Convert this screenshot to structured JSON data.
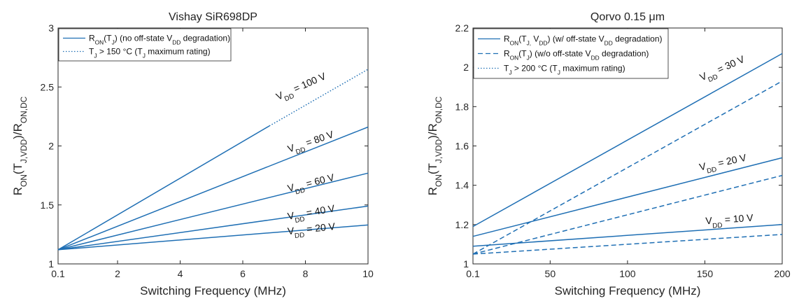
{
  "chart_data": [
    {
      "type": "line",
      "title": "Vishay SiR698DP",
      "xlabel": "Switching Frequency (MHz)",
      "ylabel": "R_ON(T_J,V_DD)/R_ON,DC",
      "xlim": [
        0.1,
        10
      ],
      "ylim": [
        1,
        3
      ],
      "xticks": [
        0.1,
        2,
        4,
        6,
        8,
        10
      ],
      "xtick_labels": [
        "0.1",
        "2",
        "4",
        "6",
        "8",
        "10"
      ],
      "yticks": [
        1,
        1.5,
        2,
        2.5,
        3
      ],
      "ytick_labels": [
        "1",
        "1.5",
        "2",
        "2.5",
        "3"
      ],
      "color": "#1f6fb4",
      "legend": [
        {
          "style": "solid",
          "text": "R_ON(T_J) (no off-state V_DD degradation)"
        },
        {
          "style": "dotted",
          "text": "T_J > 150 °C (T_J maximum rating)"
        }
      ],
      "series": [
        {
          "x": [
            0.1,
            6.85
          ],
          "y": [
            1.12,
            2.17
          ],
          "style": "solid"
        },
        {
          "x": [
            6.85,
            10
          ],
          "y": [
            2.17,
            2.65
          ],
          "style": "dotted"
        },
        {
          "x": [
            0.1,
            10
          ],
          "y": [
            1.12,
            2.16
          ],
          "style": "solid"
        },
        {
          "x": [
            0.1,
            10
          ],
          "y": [
            1.12,
            1.77
          ],
          "style": "solid"
        },
        {
          "x": [
            0.1,
            10
          ],
          "y": [
            1.12,
            1.49
          ],
          "style": "solid"
        },
        {
          "x": [
            0.1,
            10
          ],
          "y": [
            1.12,
            1.33
          ],
          "style": "solid"
        }
      ],
      "annotations": [
        {
          "text": "V_DD = 100 V",
          "at": [
            7.9,
            2.48
          ],
          "rot": -24
        },
        {
          "text": "V_DD = 80 V",
          "at": [
            8.2,
            2.01
          ],
          "rot": -19
        },
        {
          "text": "V_DD = 60 V",
          "at": [
            8.2,
            1.66
          ],
          "rot": -14
        },
        {
          "text": "V_DD = 40 V",
          "at": [
            8.2,
            1.41
          ],
          "rot": -10
        },
        {
          "text": "V_DD = 20 V",
          "at": [
            8.2,
            1.27
          ],
          "rot": -6
        }
      ]
    },
    {
      "type": "line",
      "title": "Qorvo 0.15 μm",
      "xlabel": "Switching Frequency (MHz)",
      "ylabel": "R_ON(T_J,V_DD)/R_ON,DC",
      "xlim": [
        0.1,
        200
      ],
      "ylim": [
        1,
        2.2
      ],
      "xticks": [
        0.1,
        50,
        100,
        150,
        200
      ],
      "xtick_labels": [
        "0.1",
        "50",
        "100",
        "150",
        "200"
      ],
      "yticks": [
        1,
        1.2,
        1.4,
        1.6,
        1.8,
        2,
        2.2
      ],
      "ytick_labels": [
        "1",
        "1.2",
        "1.4",
        "1.6",
        "1.8",
        "2",
        "2.2"
      ],
      "color": "#1f6fb4",
      "legend": [
        {
          "style": "solid",
          "text": "R_ON(T_J, V_DD) (w/ off-state V_DD degradation)"
        },
        {
          "style": "dashed",
          "text": "R_ON(T_J) (w/o off-state V_DD degradation)"
        },
        {
          "style": "dotted",
          "text": "T_J > 200 °C (T_J maximum rating)"
        }
      ],
      "series": [
        {
          "x": [
            0.1,
            200
          ],
          "y": [
            1.19,
            2.07
          ],
          "style": "solid"
        },
        {
          "x": [
            0.1,
            200
          ],
          "y": [
            1.05,
            1.93
          ],
          "style": "dashed"
        },
        {
          "x": [
            0.1,
            200
          ],
          "y": [
            1.14,
            1.54
          ],
          "style": "solid"
        },
        {
          "x": [
            0.1,
            200
          ],
          "y": [
            1.05,
            1.45
          ],
          "style": "dashed"
        },
        {
          "x": [
            0.1,
            200
          ],
          "y": [
            1.09,
            1.2
          ],
          "style": "solid"
        },
        {
          "x": [
            0.1,
            200
          ],
          "y": [
            1.05,
            1.15
          ],
          "style": "dashed"
        }
      ],
      "annotations": [
        {
          "text": "V_DD = 30 V",
          "at": [
            162,
            1.98
          ],
          "rot": -24
        },
        {
          "text": "V_DD = 20 V",
          "at": [
            162,
            1.5
          ],
          "rot": -12
        },
        {
          "text": "V_DD = 10 V",
          "at": [
            166,
            1.21
          ],
          "rot": -4
        }
      ]
    }
  ]
}
